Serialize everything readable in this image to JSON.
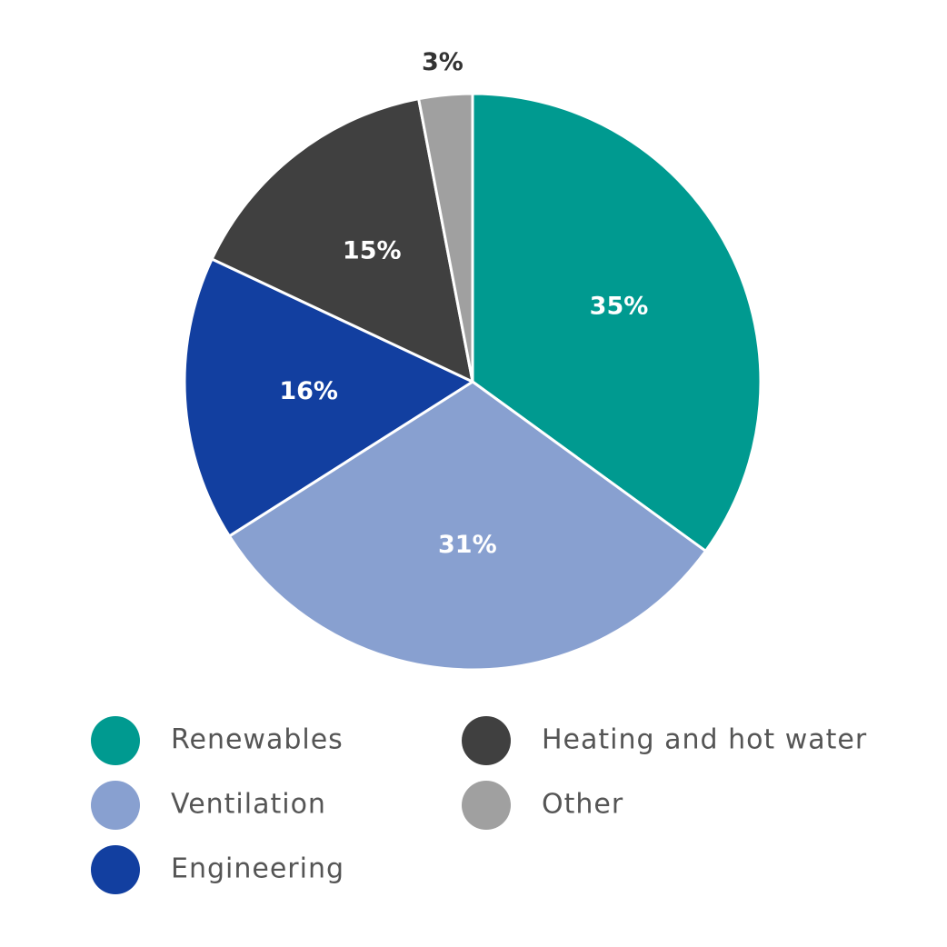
{
  "chart_data": {
    "type": "pie",
    "categories": [
      "Renewables",
      "Ventilation",
      "Engineering",
      "Heating and hot water",
      "Other"
    ],
    "values": [
      35,
      31,
      16,
      15,
      3
    ],
    "value_labels": [
      "35%",
      "31%",
      "16%",
      "15%",
      "3%"
    ],
    "colors": [
      "#009a90",
      "#88a0d0",
      "#123fa0",
      "#404040",
      "#a0a0a0"
    ]
  }
}
